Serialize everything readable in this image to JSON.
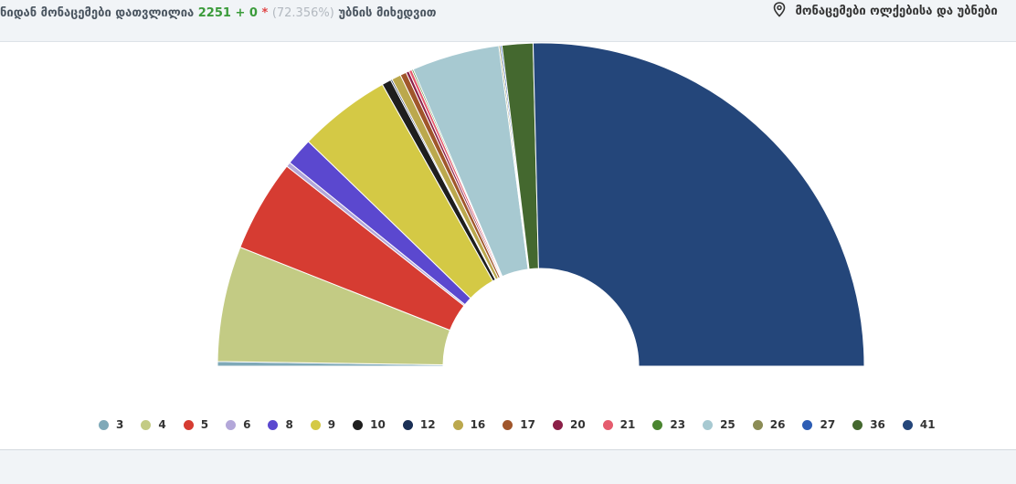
{
  "header": {
    "left_text": "ნიდან მონაცემები დათვლილია",
    "count": "2251 + 0",
    "star": "*",
    "percent": "(72.356%)",
    "suffix": "უბნის მიხედვით",
    "right_text": "მონაცემები ოლქებისა და უბნები"
  },
  "chart_data": {
    "type": "pie",
    "subtype": "semi-donut",
    "categories": [
      "3",
      "4",
      "5",
      "6",
      "8",
      "9",
      "10",
      "12",
      "16",
      "17",
      "20",
      "21",
      "23",
      "25",
      "26",
      "27",
      "36",
      "41"
    ],
    "values": [
      0.3,
      7.5,
      6.0,
      0.3,
      1.8,
      6.0,
      0.6,
      0.1,
      0.6,
      0.4,
      0.2,
      0.2,
      0.1,
      5.7,
      0.1,
      0.1,
      2.0,
      33.0
    ],
    "colors": [
      "#7fa9b8",
      "#c3cb84",
      "#d63c32",
      "#b3a7d9",
      "#5b48cf",
      "#d4c945",
      "#1e1e1e",
      "#1a2f55",
      "#bba84d",
      "#a0562b",
      "#8b2048",
      "#e55c6e",
      "#4a8530",
      "#a7c9d1",
      "#8b8c55",
      "#2d5db4",
      "#44682f",
      "#24467a"
    ],
    "legend_position": "bottom"
  }
}
